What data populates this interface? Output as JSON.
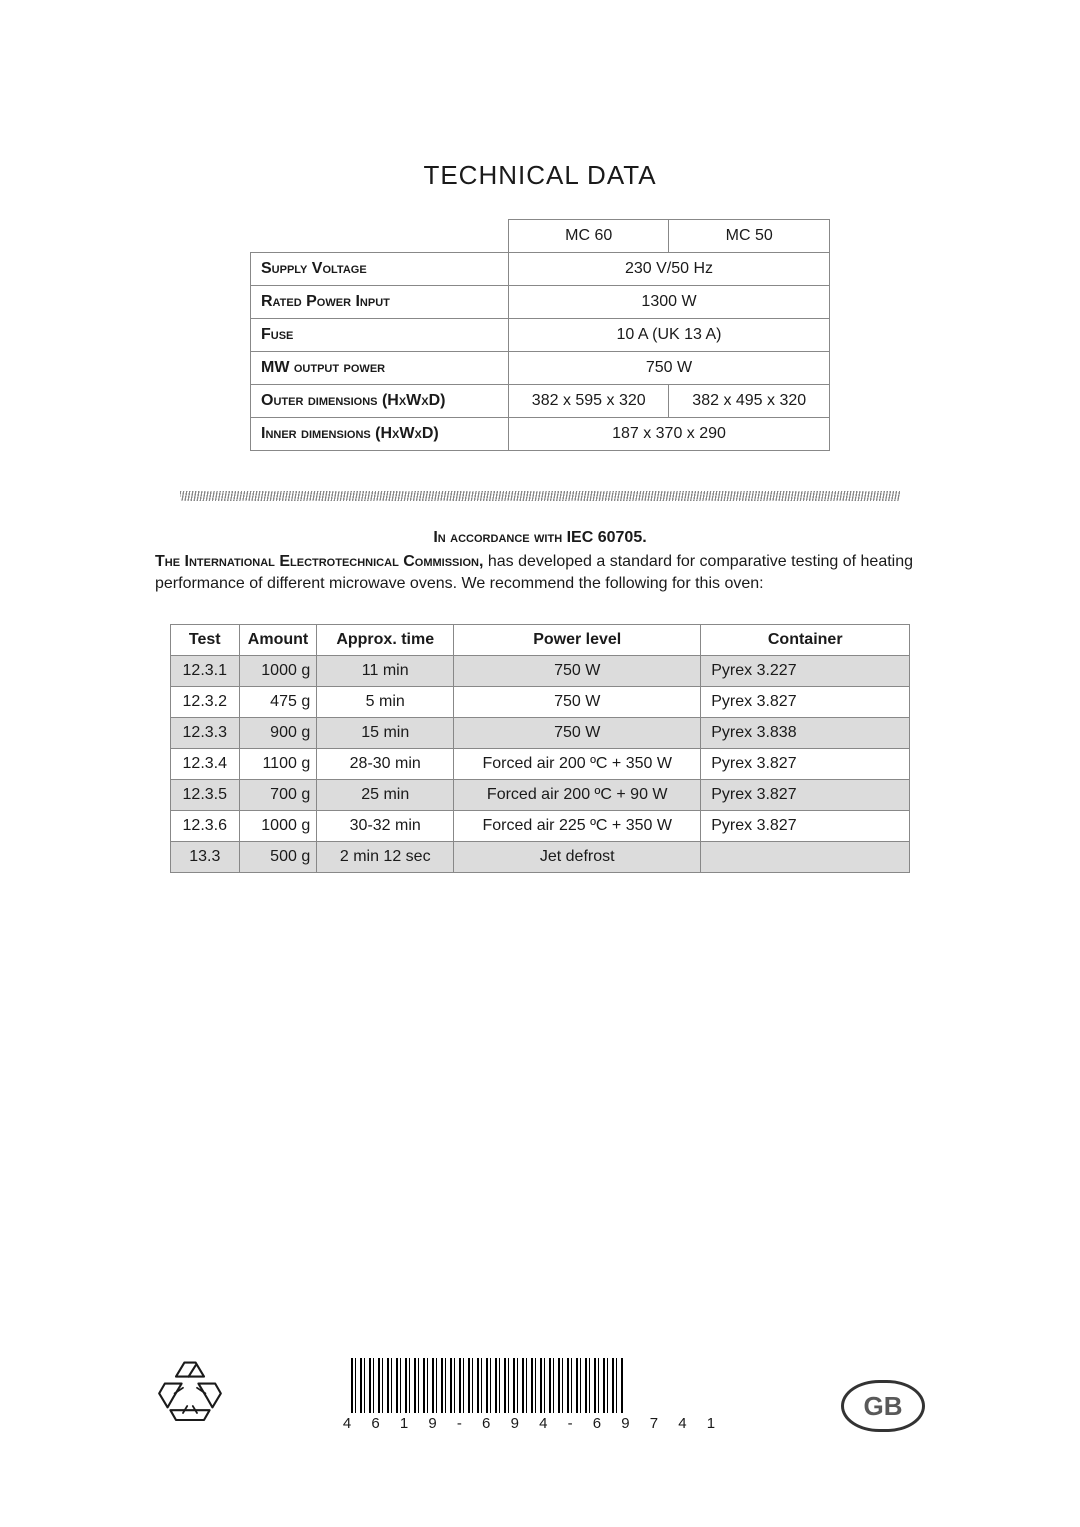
{
  "title": "TECHNICAL DATA",
  "spec": {
    "models": [
      "MC 60",
      "MC 50"
    ],
    "rows": [
      {
        "label": "Supply Voltage",
        "span": true,
        "value": "230 V/50 Hz"
      },
      {
        "label": "Rated Power Input",
        "span": true,
        "value": "1300 W"
      },
      {
        "label": "Fuse",
        "span": true,
        "value": "10 A (UK 13 A)"
      },
      {
        "label": "MW output power",
        "span": true,
        "value": "750 W"
      },
      {
        "label": "Outer dimensions (HxWxD)",
        "span": false,
        "v1": "382 x 595 x 320",
        "v2": "382 x 495 x 320"
      },
      {
        "label": "Inner dimensions (HxWxD)",
        "span": true,
        "value": "187 x 370 x 290"
      }
    ]
  },
  "iec_line_prefix": "In accordance with ",
  "iec_line_bold": "IEC 60705.",
  "paragraph_lead": "The International Electrotechnical Commission,",
  "paragraph_rest": " has developed a standard for comparative testing of heating performance of different microwave ovens. We recommend the following for this oven:",
  "test_table": {
    "headers": [
      "Test",
      "Amount",
      "Approx. time",
      "Power level",
      "Container"
    ],
    "rows": [
      {
        "shade": true,
        "test": "12.3.1",
        "amount": "1000 g",
        "time": "11 min",
        "power": "750 W",
        "container": "Pyrex 3.227"
      },
      {
        "shade": false,
        "test": "12.3.2",
        "amount": "475 g",
        "time": "5 min",
        "power": "750 W",
        "container": "Pyrex 3.827"
      },
      {
        "shade": true,
        "test": "12.3.3",
        "amount": "900 g",
        "time": "15 min",
        "power": "750 W",
        "container": "Pyrex 3.838"
      },
      {
        "shade": false,
        "test": "12.3.4",
        "amount": "1100 g",
        "time": "28-30 min",
        "power": "Forced air 200 ºC + 350 W",
        "container": "Pyrex 3.827"
      },
      {
        "shade": true,
        "test": "12.3.5",
        "amount": "700 g",
        "time": "25 min",
        "power": "Forced air 200 ºC + 90 W",
        "container": "Pyrex 3.827"
      },
      {
        "shade": false,
        "test": "12.3.6",
        "amount": "1000 g",
        "time": "30-32 min",
        "power": "Forced air 225 ºC + 350 W",
        "container": "Pyrex 3.827"
      },
      {
        "shade": true,
        "test": "13.3",
        "amount": "500 g",
        "time": "2 min 12 sec",
        "power": "Jet defrost",
        "container": ""
      }
    ]
  },
  "barcode_number": "4 6 1 9 - 6 9 4 - 6 9 7 4 1",
  "country_badge": "GB"
}
